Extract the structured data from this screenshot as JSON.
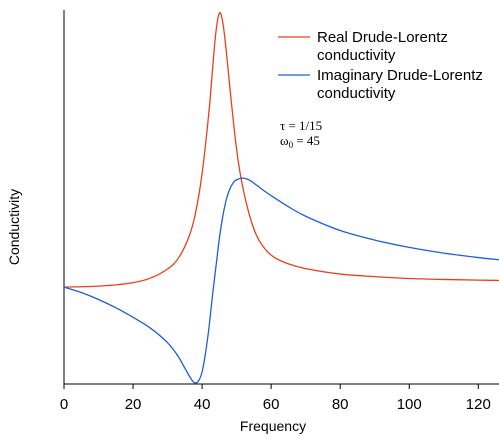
{
  "chart_data": {
    "type": "line",
    "title": "",
    "xlabel": "Frequency",
    "ylabel": "Conductivity",
    "xlim": [
      0,
      126
    ],
    "xticks": [
      0,
      20,
      40,
      60,
      80,
      100,
      120
    ],
    "y_tick_labels_shown": false,
    "grid": false,
    "legend_position": "top-right",
    "parameters": {
      "tau": 0.0667,
      "omega0": 45
    },
    "annotations": [
      {
        "text": "τ = 1/15"
      },
      {
        "text": "ω",
        "subscript": "0",
        "suffix": " = 45"
      }
    ],
    "series": [
      {
        "name": "Real Drude-Lorentz conductivity",
        "legend_lines": [
          "Real Drude-Lorentz",
          "conductivity"
        ],
        "color": "#e8401c",
        "x": [
          0,
          5,
          10,
          15,
          20,
          25,
          30,
          33,
          36,
          38,
          40,
          42,
          43,
          44,
          45,
          46,
          47,
          48,
          50,
          52,
          55,
          58,
          61,
          65,
          70,
          80,
          90,
          100,
          110,
          120,
          126
        ],
        "y": [
          0.097,
          0.098,
          0.1,
          0.104,
          0.111,
          0.125,
          0.154,
          0.186,
          0.25,
          0.325,
          0.455,
          0.65,
          0.78,
          0.9,
          0.96,
          0.93,
          0.84,
          0.73,
          0.53,
          0.4,
          0.28,
          0.22,
          0.19,
          0.17,
          0.155,
          0.138,
          0.13,
          0.124,
          0.121,
          0.119,
          0.118
        ]
      },
      {
        "name": "Imaginary Drude-Lorentz conductivity",
        "legend_lines": [
          "Imaginary Drude-Lorentz",
          "conductivity"
        ],
        "color": "#1e5fd6",
        "x": [
          0,
          5,
          10,
          15,
          20,
          25,
          30,
          33,
          35,
          37,
          38,
          39,
          40,
          41,
          42,
          43,
          44,
          45,
          46,
          47,
          48,
          49,
          50,
          52,
          54,
          56,
          58,
          60,
          65,
          70,
          80,
          90,
          100,
          110,
          120,
          126
        ],
        "y": [
          0.097,
          0.08,
          0.058,
          0.032,
          0.002,
          -0.032,
          -0.078,
          -0.12,
          -0.158,
          -0.195,
          -0.205,
          -0.198,
          -0.17,
          -0.11,
          -0.03,
          0.07,
          0.16,
          0.25,
          0.32,
          0.372,
          0.405,
          0.425,
          0.435,
          0.44,
          0.432,
          0.416,
          0.4,
          0.385,
          0.35,
          0.32,
          0.275,
          0.245,
          0.222,
          0.204,
          0.19,
          0.183
        ]
      }
    ]
  }
}
